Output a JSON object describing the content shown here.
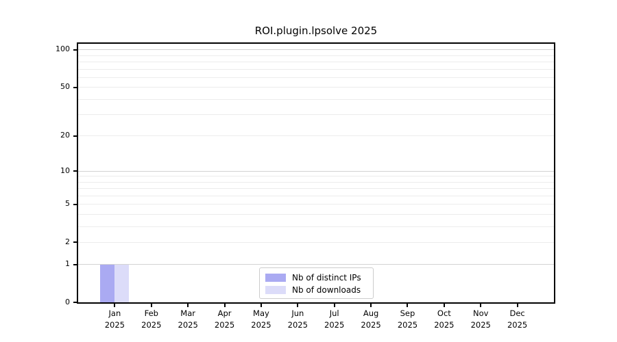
{
  "chart_data": {
    "type": "bar",
    "title": "ROI.plugin.lpsolve 2025",
    "year_label": "2025",
    "months": [
      "Jan",
      "Feb",
      "Mar",
      "Apr",
      "May",
      "Jun",
      "Jul",
      "Aug",
      "Sep",
      "Oct",
      "Nov",
      "Dec"
    ],
    "categories": [
      "Jan 2025",
      "Feb 2025",
      "Mar 2025",
      "Apr 2025",
      "May 2025",
      "Jun 2025",
      "Jul 2025",
      "Aug 2025",
      "Sep 2025",
      "Oct 2025",
      "Nov 2025",
      "Dec 2025"
    ],
    "series": [
      {
        "name": "Nb of distinct IPs",
        "color": "#aaaaf2",
        "values": [
          1,
          0,
          0,
          0,
          0,
          0,
          0,
          0,
          0,
          0,
          0,
          0
        ]
      },
      {
        "name": "Nb of downloads",
        "color": "#dcdcf9",
        "values": [
          1,
          0,
          0,
          0,
          0,
          0,
          0,
          0,
          0,
          0,
          0,
          0
        ]
      }
    ],
    "xlabel": "",
    "ylabel": "",
    "yscale": "log1p",
    "ylim": [
      0,
      112
    ],
    "yticks": [
      0,
      1,
      2,
      5,
      10,
      20,
      50,
      100
    ],
    "grid": {
      "major_values": [
        1,
        10,
        100
      ],
      "minor_values": [
        2,
        3,
        4,
        6,
        7,
        8,
        9,
        20,
        30,
        40,
        60,
        70,
        80,
        90
      ],
      "light_major_values": [
        2,
        5,
        20,
        50
      ],
      "major_color": "#d2d2d2",
      "minor_color": "#ececec"
    },
    "legend_position": "lower center",
    "spine_color": "#000000",
    "background_color": "#ffffff"
  }
}
